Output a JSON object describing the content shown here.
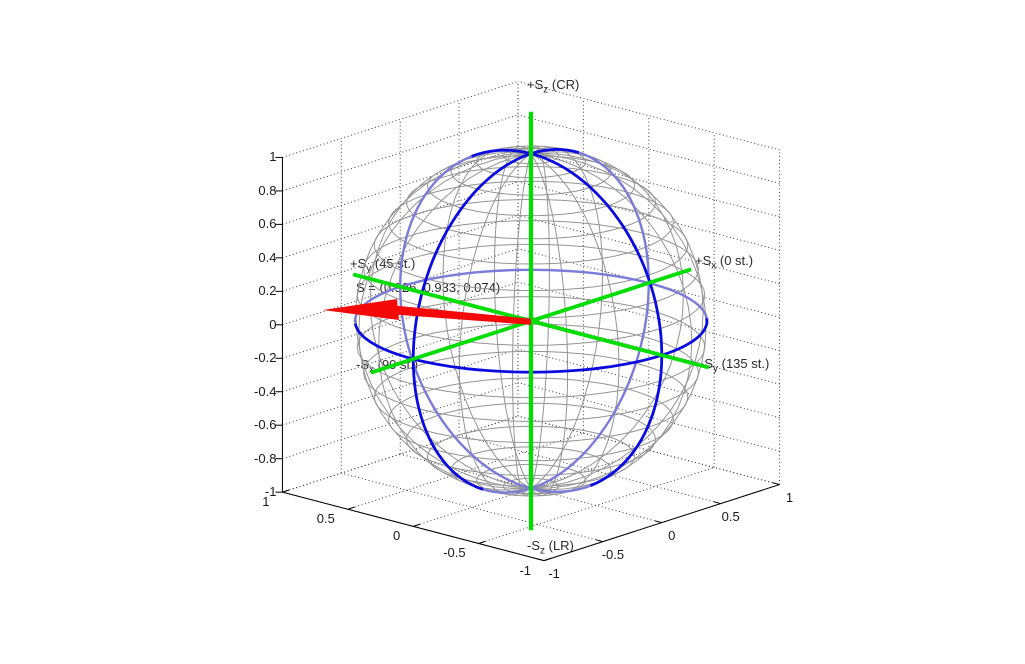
{
  "figure": {
    "background": "#ffffff",
    "text_color": "#2a2a2a"
  },
  "chart_data": {
    "type": "line",
    "subtype": "poincare_sphere_3d_wireframe",
    "title": "",
    "axis_ranges": {
      "x": [
        -1,
        1
      ],
      "y": [
        -1,
        1
      ],
      "z": [
        -1,
        1
      ]
    },
    "ticks": {
      "z_labels": [
        "1",
        "0.8",
        "0.6",
        "0.4",
        "0.2",
        "0",
        "-0.2",
        "-0.4",
        "-0.6",
        "-0.8",
        "-1"
      ],
      "y_edge_labels": [
        "1",
        "0.5",
        "0",
        "-0.5",
        "-1"
      ],
      "x_edge_labels": [
        "-1",
        "-0.5",
        "0",
        "0.5",
        "1"
      ]
    },
    "direction_labels": {
      "pos_z": {
        "base": "+S",
        "sub": "z",
        "rest": " (CR)"
      },
      "neg_z": {
        "base": "-S",
        "sub": "z",
        "rest": " (LR)"
      },
      "pos_x": {
        "base": "+S",
        "sub": "x",
        "rest": " (0 st.)"
      },
      "neg_x": {
        "base": "-S",
        "sub": "x",
        "rest": " (90 st.)"
      },
      "pos_y": {
        "base": "+S",
        "sub": "y",
        "rest": " (45 st.)"
      },
      "neg_y": {
        "base": "-S",
        "sub": "y",
        "rest": " (135 st.)"
      }
    },
    "vector": {
      "label": "S = (0.926, 0.933, 0.074)",
      "components": {
        "s1": 0.926,
        "s2": 0.933,
        "s3": 0.074
      },
      "color": "#f40808"
    },
    "sphere": {
      "meridian_circles": 10,
      "parallel_rings": 19,
      "wire_color": "#949494"
    },
    "great_circles": {
      "circles": [
        "equator",
        "meridian_xz",
        "meridian_yz"
      ],
      "front_color": "#0b0bdf",
      "back_color": "#7b7bd8"
    },
    "stokes_axes_color": "#00dd00",
    "grid": {
      "on": true,
      "line_color": "#3c3c3c",
      "axis_color": "#000000"
    },
    "view": {
      "azimuth_deg": 48,
      "elevation_deg": 17
    }
  }
}
